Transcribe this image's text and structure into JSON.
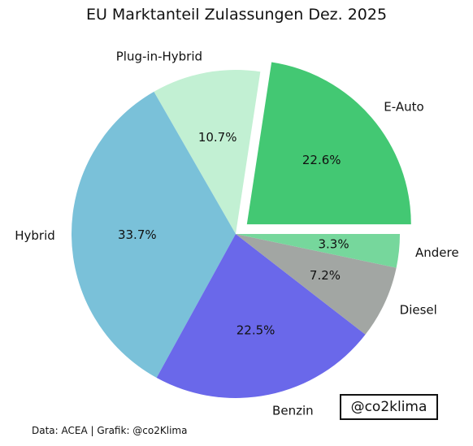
{
  "chart_data": {
    "type": "pie",
    "title": "EU Marktanteil Zulassungen Dez. 2025",
    "slices": [
      {
        "label": "E-Auto",
        "value": 22.6,
        "pct_label": "22.6%",
        "color": "#43c873",
        "exploded": true
      },
      {
        "label": "Plug-in-Hybrid",
        "value": 10.7,
        "pct_label": "10.7%",
        "color": "#c2f0d3",
        "exploded": false
      },
      {
        "label": "Hybrid",
        "value": 33.7,
        "pct_label": "33.7%",
        "color": "#7ac1d9",
        "exploded": false
      },
      {
        "label": "Benzin",
        "value": 22.5,
        "pct_label": "22.5%",
        "color": "#6a68ea",
        "exploded": false
      },
      {
        "label": "Diesel",
        "value": 7.2,
        "pct_label": "7.2%",
        "color": "#a2a6a3",
        "exploded": false
      },
      {
        "label": "Andere",
        "value": 3.3,
        "pct_label": "3.3%",
        "color": "#76d79c",
        "exploded": false
      }
    ]
  },
  "footer": {
    "source": "Data: ACEA | Grafik: @co2Klima",
    "handle": "@co2klima"
  }
}
